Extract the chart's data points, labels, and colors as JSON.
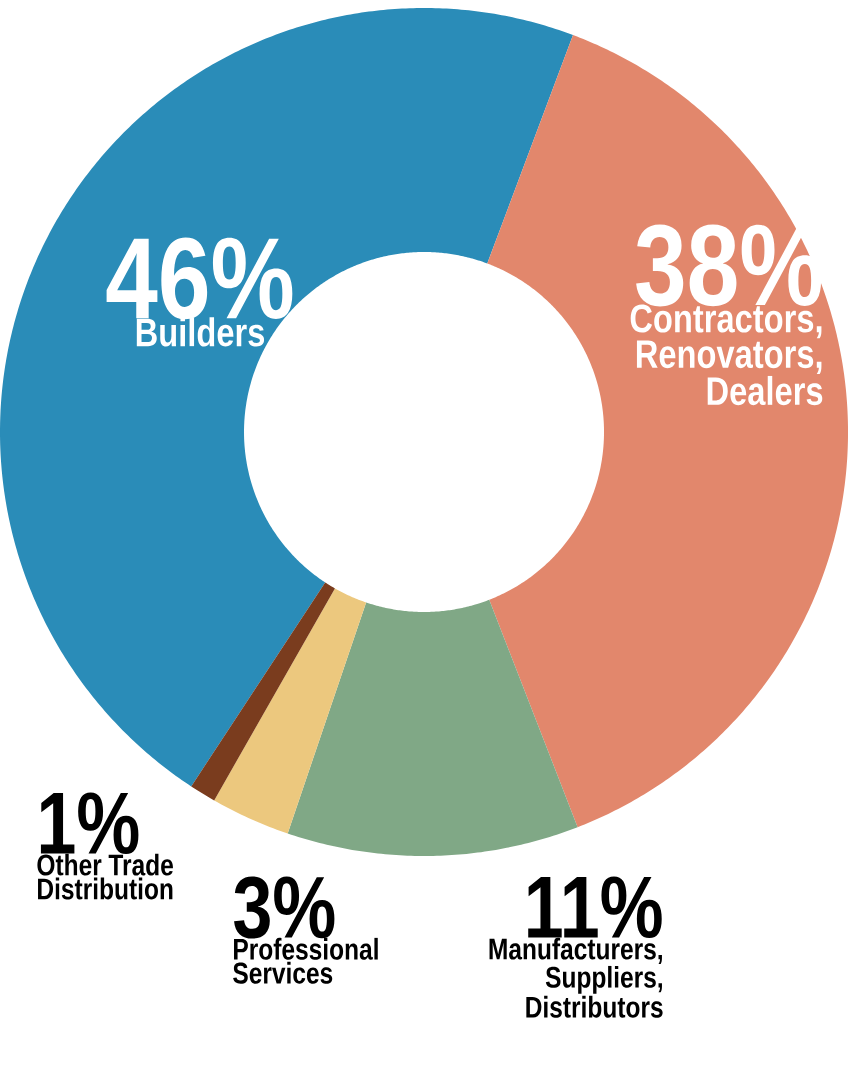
{
  "chart_data": {
    "type": "donut",
    "categories": [
      "Builders",
      "Contractors, Renovators, Dealers",
      "Manufacturers, Suppliers, Distributors",
      "Professional Services",
      "Other Trade Distribution"
    ],
    "values": [
      46,
      38,
      11,
      3,
      1
    ],
    "value_labels": [
      "46%",
      "38%",
      "11%",
      "3%",
      "1%"
    ],
    "colors": [
      "#2a8cb8",
      "#e2876c",
      "#80a886",
      "#ecc87e",
      "#7a3c1e"
    ]
  }
}
